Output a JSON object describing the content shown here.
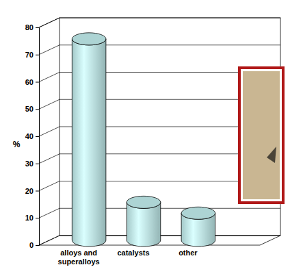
{
  "chart_data": {
    "type": "bar",
    "ylabel": "%",
    "categories": [
      "alloys and superalloys",
      "catalysts",
      "other"
    ],
    "values": [
      74,
      14,
      10
    ],
    "color": "#c4f0f0",
    "ylim": [
      0,
      80
    ],
    "yticks": [
      0,
      10,
      20,
      30,
      40,
      50,
      60,
      70,
      80
    ],
    "grid": true
  }
}
